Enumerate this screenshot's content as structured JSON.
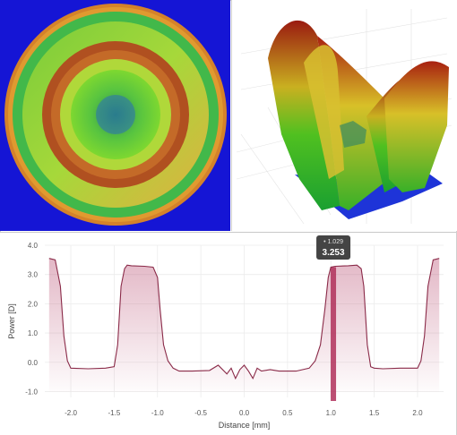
{
  "chart_data": {
    "type": "line",
    "title": "",
    "xlabel": "Distance [mm]",
    "ylabel": "Power [D]",
    "xlim": [
      -2.3,
      2.3
    ],
    "ylim": [
      -1.2,
      4.0
    ],
    "x_ticks": [
      "-2.0",
      "-1.5",
      "-1.0",
      "-0.5",
      "0.0",
      "0.5",
      "1.0",
      "1.5",
      "2.0"
    ],
    "y_ticks": [
      "4.0",
      "3.0",
      "2.0",
      "1.0",
      "0.0",
      "-1.0"
    ],
    "series": [
      {
        "x": [
          -2.25,
          -2.18,
          -2.12,
          -2.08,
          -2.04,
          -2.0,
          -1.8,
          -1.6,
          -1.5,
          -1.46,
          -1.42,
          -1.38,
          -1.35,
          -1.3,
          -1.15,
          -1.05,
          -1.0,
          -0.97,
          -0.93,
          -0.88,
          -0.82,
          -0.75,
          -0.6,
          -0.4,
          -0.3,
          -0.2,
          -0.15,
          -0.1,
          -0.05,
          0.0,
          0.05,
          0.1,
          0.15,
          0.2,
          0.3,
          0.4,
          0.6,
          0.75,
          0.82,
          0.88,
          0.93,
          0.97,
          1.0,
          1.05,
          1.2,
          1.3,
          1.35,
          1.38,
          1.42,
          1.46,
          1.5,
          1.6,
          1.8,
          1.95,
          2.0,
          2.04,
          2.08,
          2.12,
          2.18,
          2.25
        ],
        "y": [
          3.55,
          3.5,
          2.6,
          0.9,
          0.05,
          -0.2,
          -0.22,
          -0.2,
          -0.15,
          0.6,
          2.6,
          3.2,
          3.32,
          3.3,
          3.28,
          3.25,
          2.9,
          1.8,
          0.6,
          0.05,
          -0.2,
          -0.3,
          -0.3,
          -0.28,
          -0.1,
          -0.4,
          -0.2,
          -0.55,
          -0.25,
          -0.1,
          -0.3,
          -0.55,
          -0.2,
          -0.3,
          -0.25,
          -0.3,
          -0.3,
          -0.2,
          0.05,
          0.6,
          1.8,
          2.9,
          3.25,
          3.28,
          3.3,
          3.32,
          3.2,
          2.6,
          0.6,
          -0.15,
          -0.2,
          -0.22,
          -0.2,
          -0.2,
          -0.2,
          0.05,
          0.9,
          2.6,
          3.5,
          3.55
        ]
      }
    ],
    "highlight": {
      "x": 1.029,
      "y": 3.253
    },
    "grid": true,
    "legend": "none"
  },
  "tooltip": {
    "x_label": "• 1.029",
    "y_label": "3.253"
  },
  "colors": {
    "line": "#8a2a48",
    "fill": "#c06080",
    "highlight_bar": "#b0305a",
    "tooltip_bg": "#444444",
    "map_bg": "#1010d8"
  }
}
